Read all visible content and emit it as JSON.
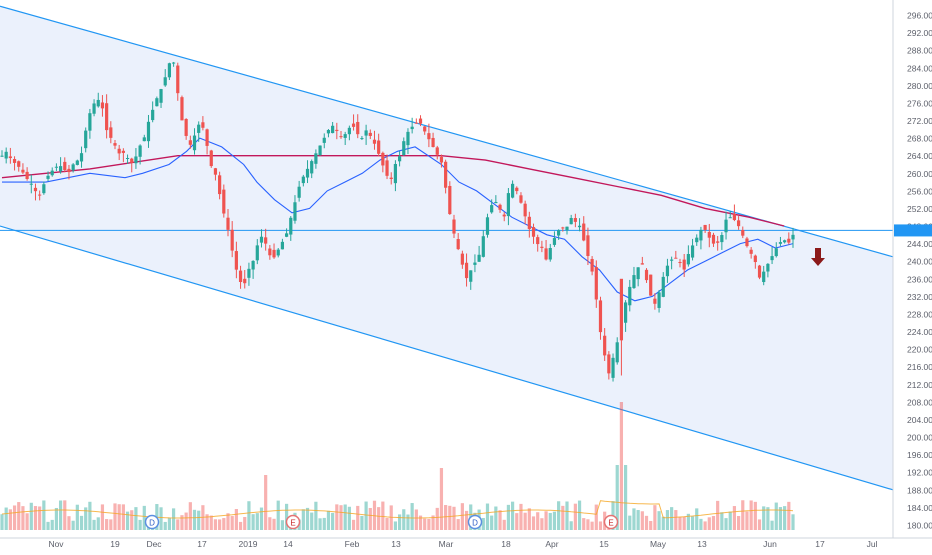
{
  "chart_data": {
    "type": "candlestick",
    "title": "",
    "x_ticks": [
      "Nov",
      "19",
      "Dec",
      "17",
      "2019",
      "14",
      "Feb",
      "13",
      "Mar",
      "18",
      "Apr",
      "15",
      "May",
      "13",
      "Jun",
      "17",
      "Jul"
    ],
    "y_ticks": [
      "296.00",
      "292.00",
      "288.00",
      "284.00",
      "280.00",
      "276.00",
      "272.00",
      "268.00",
      "264.00",
      "260.00",
      "256.00",
      "252.00",
      "248.00",
      "244.00",
      "240.00",
      "236.00",
      "232.00",
      "228.00",
      "224.00",
      "220.00",
      "216.00",
      "212.00",
      "208.00",
      "204.00",
      "200.00",
      "196.00",
      "192.00",
      "188.00",
      "184.00",
      "180.00"
    ],
    "ylim": [
      178,
      298
    ],
    "horizontal_level": 247,
    "channel": {
      "upper": [
        {
          "x": "Oct 24",
          "y": 298
        },
        {
          "x": "Jul 13",
          "y": 241
        }
      ],
      "lower": [
        {
          "x": "Oct 24",
          "y": 248
        },
        {
          "x": "Jul 13",
          "y": 188
        }
      ]
    },
    "ma_fast_approx": [
      [
        0,
        258
      ],
      [
        10,
        258
      ],
      [
        20,
        260
      ],
      [
        28,
        259
      ],
      [
        32,
        260
      ],
      [
        38,
        262
      ],
      [
        42,
        265
      ],
      [
        45,
        268
      ],
      [
        50,
        266
      ],
      [
        55,
        262
      ],
      [
        58,
        258
      ],
      [
        62,
        254
      ],
      [
        66,
        251
      ],
      [
        70,
        252
      ],
      [
        74,
        256
      ],
      [
        78,
        258
      ],
      [
        82,
        260
      ],
      [
        86,
        263
      ],
      [
        90,
        265
      ],
      [
        94,
        266
      ],
      [
        100,
        262
      ],
      [
        104,
        258
      ],
      [
        108,
        256
      ],
      [
        112,
        253
      ],
      [
        116,
        250
      ],
      [
        120,
        248
      ],
      [
        124,
        246
      ],
      [
        128,
        245
      ],
      [
        132,
        241
      ],
      [
        136,
        238
      ],
      [
        140,
        233
      ],
      [
        144,
        231
      ],
      [
        148,
        232
      ],
      [
        152,
        235
      ],
      [
        156,
        238
      ],
      [
        160,
        240
      ],
      [
        164,
        242
      ],
      [
        168,
        244
      ],
      [
        172,
        245
      ],
      [
        176,
        243
      ],
      [
        180,
        244
      ]
    ],
    "ma_slow_approx": [
      [
        0,
        259
      ],
      [
        20,
        261
      ],
      [
        40,
        264
      ],
      [
        60,
        264
      ],
      [
        80,
        264
      ],
      [
        100,
        264
      ],
      [
        110,
        263
      ],
      [
        120,
        261
      ],
      [
        130,
        259
      ],
      [
        140,
        257
      ],
      [
        150,
        255
      ],
      [
        160,
        252
      ],
      [
        170,
        250
      ],
      [
        178,
        248
      ]
    ],
    "events": [
      "D",
      "E",
      "D",
      "E"
    ],
    "signal": "down-arrow",
    "colors": {
      "up": "#26a69a",
      "down": "#ef5350",
      "ma_fast": "#2962ff",
      "ma_slow": "#c2185b",
      "channel": "#2196f3",
      "channel_fill": "#e8eefb",
      "arrow": "#8b1a1a",
      "volume_ma": "#f5a623"
    }
  }
}
